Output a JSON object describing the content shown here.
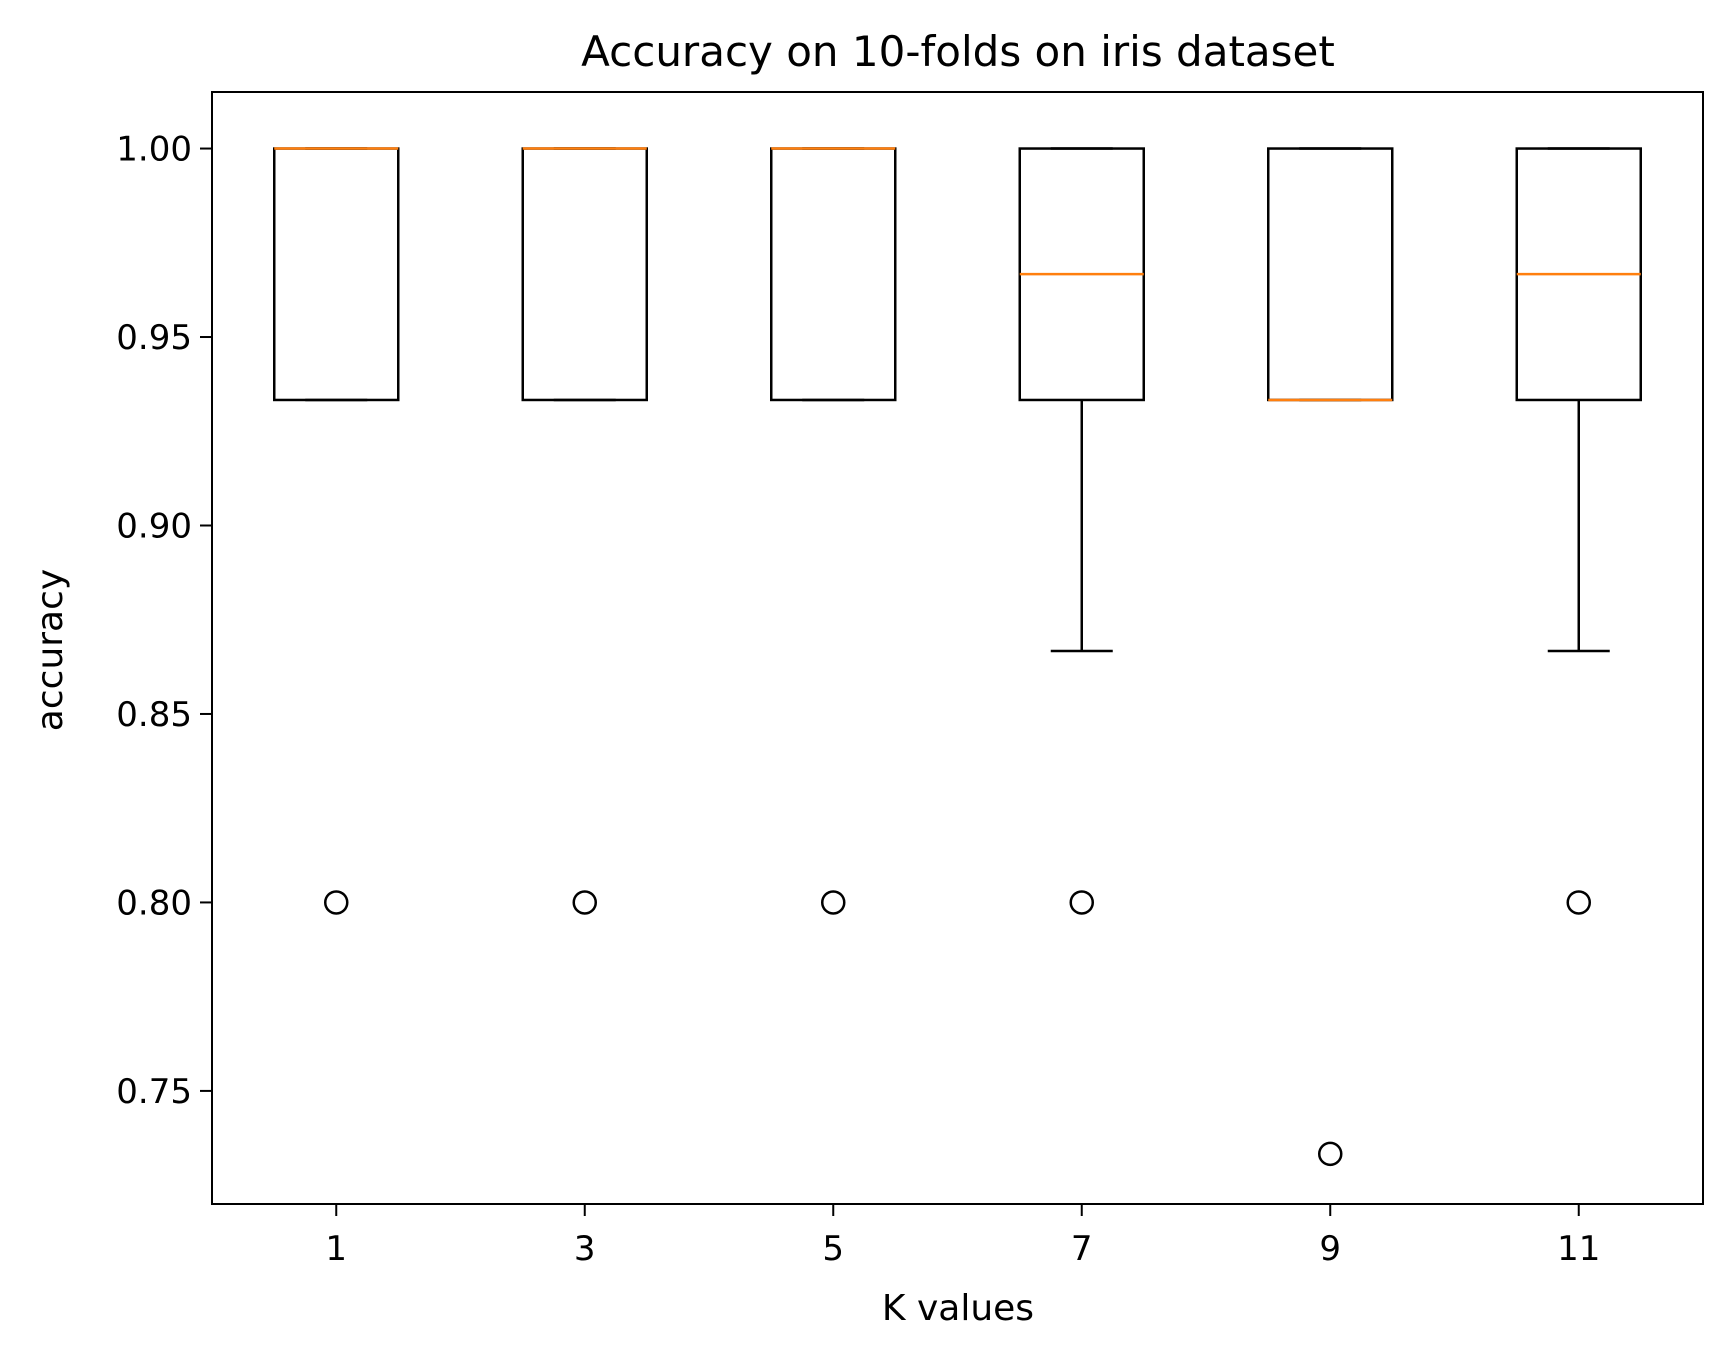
{
  "chart_data": {
    "type": "box",
    "title": "Accuracy on 10-folds on iris dataset",
    "xlabel": "K values",
    "ylabel": "accuracy",
    "categories": [
      "1",
      "3",
      "5",
      "7",
      "9",
      "11"
    ],
    "ylim": [
      0.72,
      1.015
    ],
    "yticks": [
      "0.75",
      "0.80",
      "0.85",
      "0.90",
      "0.95",
      "1.00"
    ],
    "grid": false,
    "boxes": [
      {
        "k": "1",
        "whisker_low": 0.9333,
        "q1": 0.9333,
        "median": 1.0,
        "q3": 1.0,
        "whisker_high": 1.0,
        "outliers": [
          0.8
        ]
      },
      {
        "k": "3",
        "whisker_low": 0.9333,
        "q1": 0.9333,
        "median": 1.0,
        "q3": 1.0,
        "whisker_high": 1.0,
        "outliers": [
          0.8
        ]
      },
      {
        "k": "5",
        "whisker_low": 0.9333,
        "q1": 0.9333,
        "median": 1.0,
        "q3": 1.0,
        "whisker_high": 1.0,
        "outliers": [
          0.8
        ]
      },
      {
        "k": "7",
        "whisker_low": 0.8667,
        "q1": 0.9333,
        "median": 0.9667,
        "q3": 1.0,
        "whisker_high": 1.0,
        "outliers": [
          0.8
        ]
      },
      {
        "k": "9",
        "whisker_low": 0.9333,
        "q1": 0.9333,
        "median": 0.9333,
        "q3": 1.0,
        "whisker_high": 1.0,
        "outliers": [
          0.7333
        ]
      },
      {
        "k": "11",
        "whisker_low": 0.8667,
        "q1": 0.9333,
        "median": 0.9667,
        "q3": 1.0,
        "whisker_high": 1.0,
        "outliers": [
          0.8
        ]
      }
    ],
    "colors": {
      "box": "#000000",
      "median": "#ff7f0e",
      "outlier": "#000000"
    }
  }
}
